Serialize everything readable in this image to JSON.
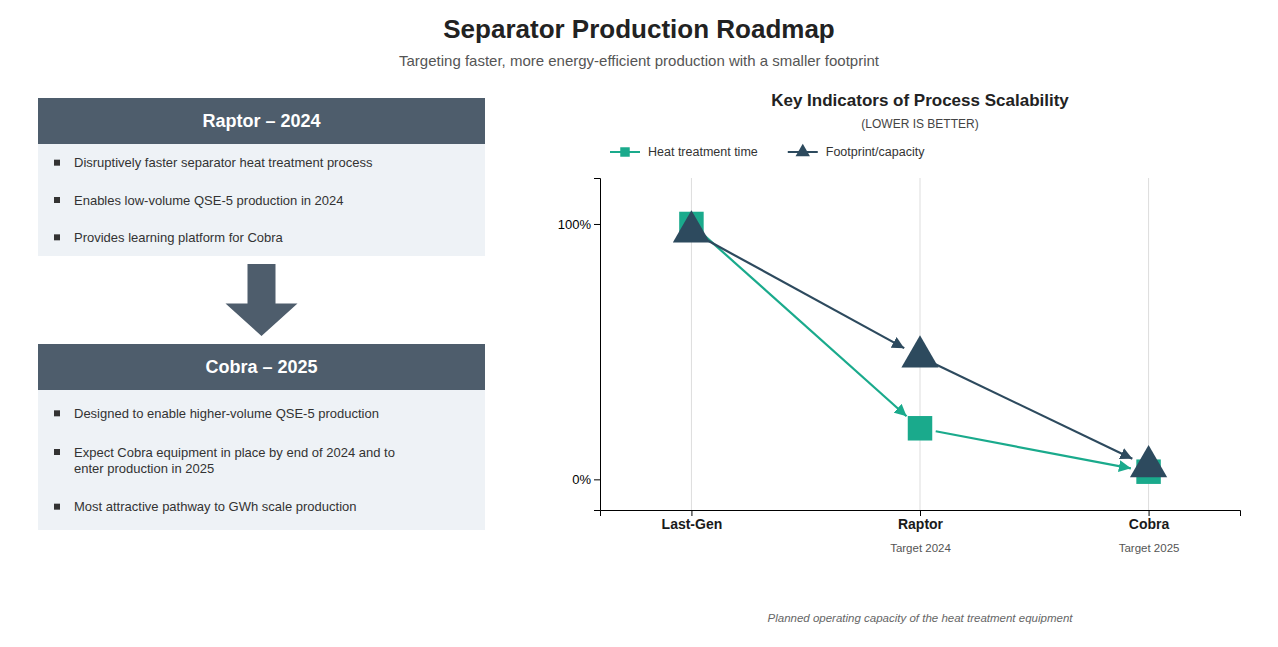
{
  "title": "Separator Production Roadmap",
  "subtitle": "Targeting faster, more energy-efficient production with a smaller footprint",
  "panels": [
    {
      "title": "Raptor – 2024",
      "bullets": [
        "Disruptively faster separator heat treatment process",
        "Enables low-volume QSE-5 production in 2024",
        "Provides learning platform for Cobra"
      ]
    },
    {
      "title": "Cobra – 2025",
      "bullets": [
        "Designed to enable higher-volume QSE-5 production",
        "Expect Cobra equipment in place by end of 2024 and to\nenter production in 2025",
        "Most attractive pathway to GWh scale production"
      ]
    }
  ],
  "chart_data": {
    "type": "line",
    "title": "Key Indicators of Process Scalability",
    "subtitle": "(LOWER IS BETTER)",
    "categories": [
      "Last-Gen",
      "Raptor",
      "Cobra"
    ],
    "category_notes": [
      null,
      "Target 2024",
      "Target 2025"
    ],
    "series": [
      {
        "name": "Heat treatment time",
        "color": "#1aaa8c",
        "marker": "square",
        "line_style": "solid",
        "values": [
          100,
          20,
          3
        ]
      },
      {
        "name": "Footprint/capacity",
        "color": "#2d4a5e",
        "marker": "triangle",
        "line_style": "solid",
        "values": [
          97,
          48,
          5
        ]
      }
    ],
    "ylim": [
      -12,
      118
    ],
    "yticks": [
      {
        "value": 0,
        "label": "0%"
      },
      {
        "value": 100,
        "label": "100%"
      }
    ],
    "grid": "x",
    "legend": "top left",
    "annotations": [
      "Planned operating capacity of the heat treatment equipment"
    ]
  }
}
